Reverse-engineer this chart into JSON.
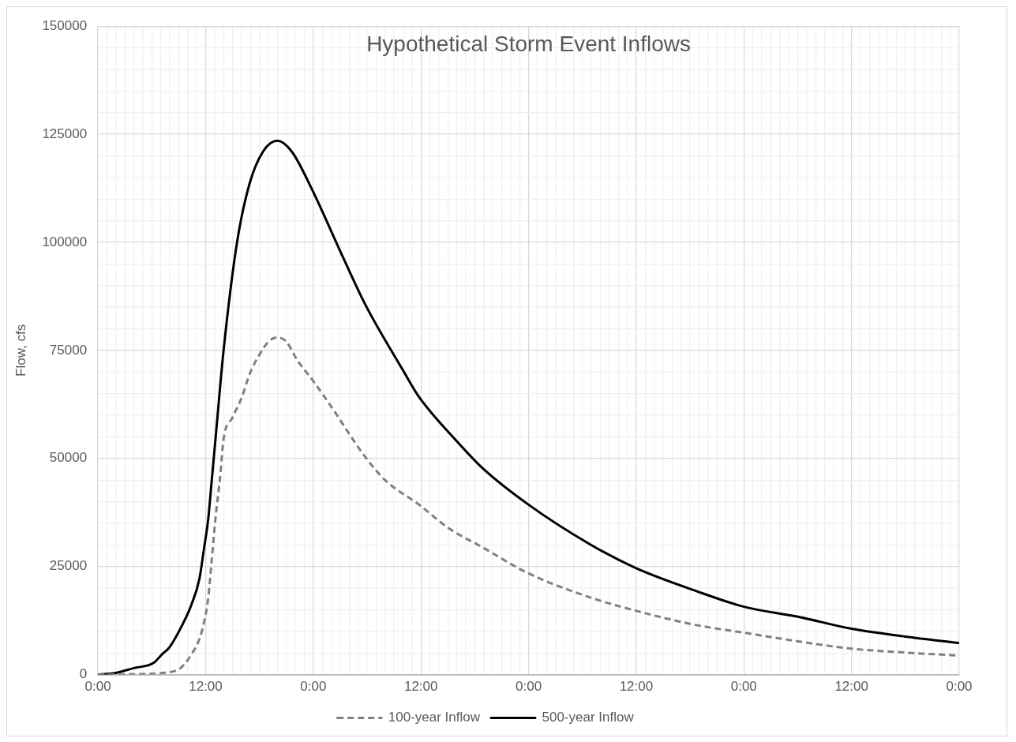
{
  "chart_data": {
    "type": "line",
    "title": "Hypothetical Storm Event Inflows",
    "ylabel": "Flow, cfs",
    "xlim": [
      "--01-01T00:00",
      "--01-05T00:00"
    ],
    "ylim": [
      0,
      150000
    ],
    "xticks": [
      {
        "value": "--01-01T00:00",
        "label": "0:00"
      },
      {
        "value": "--01-01T01:00",
        "label": null
      },
      {
        "value": "--01-01T02:00",
        "label": null
      },
      {
        "value": "--01-01T03:00",
        "label": null
      },
      {
        "value": "--01-01T04:00",
        "label": null
      },
      {
        "value": "--01-01T05:00",
        "label": null
      },
      {
        "value": "--01-01T06:00",
        "label": null
      },
      {
        "value": "--01-01T07:00",
        "label": null
      },
      {
        "value": "--01-01T08:00",
        "label": null
      },
      {
        "value": "--01-01T09:00",
        "label": null
      },
      {
        "value": "--01-01T10:00",
        "label": null
      },
      {
        "value": "--01-01T11:00",
        "label": null
      },
      {
        "value": "--01-01T12:00",
        "label": "12:00"
      },
      {
        "value": "--01-01T13:00",
        "label": null
      },
      {
        "value": "--01-01T14:00",
        "label": null
      },
      {
        "value": "--01-01T15:00",
        "label": null
      },
      {
        "value": "--01-01T16:00",
        "label": null
      },
      {
        "value": "--01-01T17:00",
        "label": null
      },
      {
        "value": "--01-01T18:00",
        "label": null
      },
      {
        "value": "--01-01T19:00",
        "label": null
      },
      {
        "value": "--01-01T20:00",
        "label": null
      },
      {
        "value": "--01-01T21:00",
        "label": null
      },
      {
        "value": "--01-01T22:00",
        "label": null
      },
      {
        "value": "--01-01T23:00",
        "label": null
      },
      {
        "value": "--01-02T00:00",
        "label": "0:00"
      },
      {
        "value": "--01-02T01:00",
        "label": null
      },
      {
        "value": "--01-02T02:00",
        "label": null
      },
      {
        "value": "--01-02T03:00",
        "label": null
      },
      {
        "value": "--01-02T04:00",
        "label": null
      },
      {
        "value": "--01-02T05:00",
        "label": null
      },
      {
        "value": "--01-02T06:00",
        "label": null
      },
      {
        "value": "--01-02T07:00",
        "label": null
      },
      {
        "value": "--01-02T08:00",
        "label": null
      },
      {
        "value": "--01-02T09:00",
        "label": null
      },
      {
        "value": "--01-02T10:00",
        "label": null
      },
      {
        "value": "--01-02T11:00",
        "label": null
      },
      {
        "value": "--01-02T12:00",
        "label": "12:00"
      },
      {
        "value": "--01-02T13:00",
        "label": null
      },
      {
        "value": "--01-02T14:00",
        "label": null
      },
      {
        "value": "--01-02T15:00",
        "label": null
      },
      {
        "value": "--01-02T16:00",
        "label": null
      },
      {
        "value": "--01-02T17:00",
        "label": null
      },
      {
        "value": "--01-02T18:00",
        "label": null
      },
      {
        "value": "--01-02T19:00",
        "label": null
      },
      {
        "value": "--01-02T20:00",
        "label": null
      },
      {
        "value": "--01-02T21:00",
        "label": null
      },
      {
        "value": "--01-02T22:00",
        "label": null
      },
      {
        "value": "--01-02T23:00",
        "label": null
      },
      {
        "value": "--01-03T00:00",
        "label": "0:00"
      },
      {
        "value": "--01-03T01:00",
        "label": null
      },
      {
        "value": "--01-03T02:00",
        "label": null
      },
      {
        "value": "--01-03T03:00",
        "label": null
      },
      {
        "value": "--01-03T04:00",
        "label": null
      },
      {
        "value": "--01-03T05:00",
        "label": null
      },
      {
        "value": "--01-03T06:00",
        "label": null
      },
      {
        "value": "--01-03T07:00",
        "label": null
      },
      {
        "value": "--01-03T08:00",
        "label": null
      },
      {
        "value": "--01-03T09:00",
        "label": null
      },
      {
        "value": "--01-03T10:00",
        "label": null
      },
      {
        "value": "--01-03T11:00",
        "label": null
      },
      {
        "value": "--01-03T12:00",
        "label": "12:00"
      },
      {
        "value": "--01-03T13:00",
        "label": null
      },
      {
        "value": "--01-03T14:00",
        "label": null
      },
      {
        "value": "--01-03T15:00",
        "label": null
      },
      {
        "value": "--01-03T16:00",
        "label": null
      },
      {
        "value": "--01-03T17:00",
        "label": null
      },
      {
        "value": "--01-03T18:00",
        "label": null
      },
      {
        "value": "--01-03T19:00",
        "label": null
      },
      {
        "value": "--01-03T20:00",
        "label": null
      },
      {
        "value": "--01-03T21:00",
        "label": null
      },
      {
        "value": "--01-03T22:00",
        "label": null
      },
      {
        "value": "--01-03T23:00",
        "label": null
      },
      {
        "value": "--01-04T00:00",
        "label": "0:00"
      },
      {
        "value": "--01-04T01:00",
        "label": null
      },
      {
        "value": "--01-04T02:00",
        "label": null
      },
      {
        "value": "--01-04T03:00",
        "label": null
      },
      {
        "value": "--01-04T04:00",
        "label": null
      },
      {
        "value": "--01-04T05:00",
        "label": null
      },
      {
        "value": "--01-04T06:00",
        "label": null
      },
      {
        "value": "--01-04T07:00",
        "label": null
      },
      {
        "value": "--01-04T08:00",
        "label": null
      },
      {
        "value": "--01-04T09:00",
        "label": null
      },
      {
        "value": "--01-04T10:00",
        "label": null
      },
      {
        "value": "--01-04T11:00",
        "label": null
      },
      {
        "value": "--01-04T12:00",
        "label": "12:00"
      },
      {
        "value": "--01-04T13:00",
        "label": null
      },
      {
        "value": "--01-04T14:00",
        "label": null
      },
      {
        "value": "--01-04T15:00",
        "label": null
      },
      {
        "value": "--01-04T16:00",
        "label": null
      },
      {
        "value": "--01-04T17:00",
        "label": null
      },
      {
        "value": "--01-04T18:00",
        "label": null
      },
      {
        "value": "--01-04T19:00",
        "label": null
      },
      {
        "value": "--01-04T20:00",
        "label": null
      },
      {
        "value": "--01-04T21:00",
        "label": null
      },
      {
        "value": "--01-04T22:00",
        "label": null
      },
      {
        "value": "--01-04T23:00",
        "label": null
      },
      {
        "value": "--01-05T00:00",
        "label": "0:00"
      }
    ],
    "yticks": [
      0,
      {
        "value": 5000,
        "label": null
      },
      {
        "value": 10000,
        "label": null
      },
      {
        "value": 15000,
        "label": null
      },
      {
        "value": 20000,
        "label": null
      },
      25000,
      {
        "value": 30000,
        "label": null
      },
      {
        "value": 35000,
        "label": null
      },
      {
        "value": 40000,
        "label": null
      },
      {
        "value": 45000,
        "label": null
      },
      50000,
      {
        "value": 55000,
        "label": null
      },
      {
        "value": 60000,
        "label": null
      },
      {
        "value": 65000,
        "label": null
      },
      {
        "value": 70000,
        "label": null
      },
      75000,
      {
        "value": 80000,
        "label": null
      },
      {
        "value": 85000,
        "label": null
      },
      {
        "value": 90000,
        "label": null
      },
      {
        "value": 95000,
        "label": null
      },
      100000,
      {
        "value": 105000,
        "label": null
      },
      {
        "value": 110000,
        "label": null
      },
      {
        "value": 115000,
        "label": null
      },
      {
        "value": 120000,
        "label": null
      },
      125000,
      {
        "value": 130000,
        "label": null
      },
      {
        "value": 135000,
        "label": null
      },
      {
        "value": 140000,
        "label": null
      },
      {
        "value": 145000,
        "label": null
      },
      150000
    ],
    "grid": true,
    "legend": "bottom",
    "marker": "none",
    "series": [
      {
        "name": "100-year Inflow",
        "color": "#808080",
        "line_style": "dashed",
        "x": [
          "--01-01T00:00",
          "--01-01T04:00",
          "--01-01T07:42",
          "--01-01T09:12",
          "--01-01T10:24",
          "--01-01T11:18",
          "--01-01T11:48",
          "--01-01T12:18",
          "--01-01T12:42",
          "--01-01T13:06",
          "--01-01T13:36",
          "--01-01T14:00",
          "--01-01T15:00",
          "--01-01T16:00",
          "--01-01T17:00",
          "--01-01T18:00",
          "--01-01T19:00",
          "--01-01T20:00",
          "--01-01T21:00",
          "--01-01T22:12",
          "--01-02T00:00",
          "--01-02T02:00",
          "--01-02T05:36",
          "--01-02T08:00",
          "--01-02T11:48",
          "--01-02T15:00",
          "--01-02T18:54",
          "--01-03T00:00",
          "--01-03T06:48",
          "--01-03T11:54",
          "--01-03T18:36",
          "--01-04T00:00",
          "--01-04T06:00",
          "--01-04T12:00",
          "--01-04T18:00",
          "--01-05T00:00"
        ],
        "values": [
          0,
          100,
          500,
          1500,
          4600,
          8200,
          11900,
          17900,
          27000,
          36200,
          45400,
          54500,
          59500,
          64000,
          70000,
          74000,
          77000,
          78000,
          77000,
          72800,
          67900,
          62000,
          50900,
          45000,
          39300,
          34000,
          29400,
          23400,
          17900,
          14800,
          11500,
          9700,
          7700,
          6000,
          5100,
          4400
        ]
      },
      {
        "name": "500-year Inflow",
        "color": "#000000",
        "line_style": "solid",
        "x": [
          "--01-01T00:00",
          "--01-01T02:00",
          "--01-01T04:00",
          "--01-01T06:12",
          "--01-01T07:06",
          "--01-01T08:00",
          "--01-01T09:30",
          "--01-01T10:24",
          "--01-01T11:18",
          "--01-01T11:48",
          "--01-01T12:18",
          "--01-01T12:42",
          "--01-01T13:06",
          "--01-01T14:00",
          "--01-01T15:30",
          "--01-01T16:54",
          "--01-01T18:24",
          "--01-01T20:00",
          "--01-01T21:36",
          "--01-01T23:48",
          "--01-02T03:18",
          "--01-02T05:48",
          "--01-02T10:00",
          "--01-02T11:48",
          "--01-02T16:00",
          "--01-02T18:54",
          "--01-03T00:00",
          "--01-03T06:48",
          "--01-03T11:54",
          "--01-03T18:36",
          "--01-04T00:00",
          "--01-04T06:00",
          "--01-04T12:00",
          "--01-04T18:00",
          "--01-05T00:00"
        ],
        "values": [
          0,
          400,
          1500,
          2700,
          4600,
          6400,
          11900,
          16100,
          22100,
          28900,
          36200,
          45400,
          54500,
          75000,
          100000,
          113600,
          121000,
          123500,
          121000,
          112500,
          96600,
          85600,
          70400,
          64200,
          54000,
          47700,
          39300,
          30200,
          24700,
          19400,
          15700,
          13400,
          10600,
          8800,
          7300
        ]
      }
    ]
  }
}
